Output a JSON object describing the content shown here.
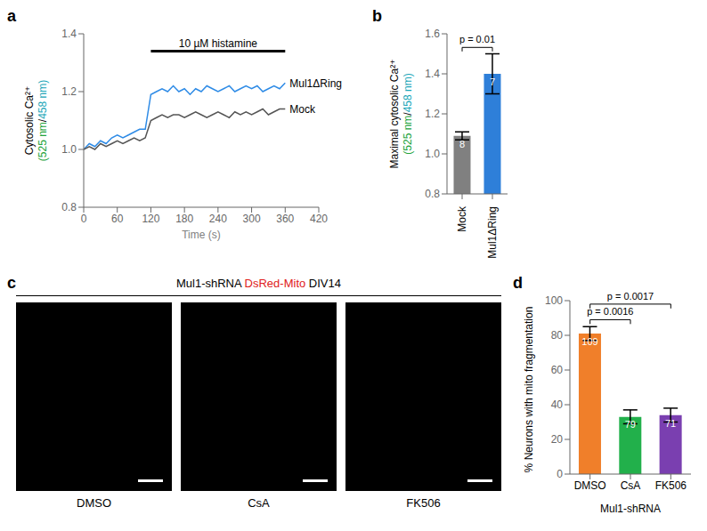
{
  "chart_data": [
    {
      "panel": "a",
      "type": "line",
      "xlabel": "Time (s)",
      "ylabel": [
        "Cytosolic Ca²⁺",
        "(525 nm/458 nm)"
      ],
      "x": [
        0,
        10,
        20,
        30,
        40,
        50,
        60,
        70,
        80,
        90,
        100,
        110,
        120,
        130,
        140,
        150,
        160,
        170,
        180,
        190,
        200,
        210,
        220,
        230,
        240,
        250,
        260,
        270,
        280,
        290,
        300,
        310,
        320,
        330,
        340,
        350,
        360
      ],
      "series": [
        {
          "name": "Mul1ΔRing",
          "color": "#2e8be6",
          "values": [
            1.0,
            1.02,
            1.01,
            1.03,
            1.02,
            1.04,
            1.05,
            1.04,
            1.05,
            1.06,
            1.07,
            1.07,
            1.19,
            1.2,
            1.21,
            1.2,
            1.22,
            1.2,
            1.21,
            1.19,
            1.21,
            1.2,
            1.22,
            1.21,
            1.2,
            1.21,
            1.22,
            1.2,
            1.21,
            1.22,
            1.21,
            1.22,
            1.2,
            1.21,
            1.22,
            1.21,
            1.23
          ]
        },
        {
          "name": "Mock",
          "color": "#555555",
          "values": [
            1.0,
            1.01,
            1.0,
            1.02,
            1.01,
            1.02,
            1.03,
            1.02,
            1.03,
            1.04,
            1.03,
            1.04,
            1.1,
            1.11,
            1.12,
            1.11,
            1.12,
            1.12,
            1.11,
            1.12,
            1.13,
            1.12,
            1.11,
            1.12,
            1.13,
            1.12,
            1.11,
            1.13,
            1.12,
            1.13,
            1.12,
            1.13,
            1.14,
            1.12,
            1.13,
            1.14,
            1.14
          ]
        }
      ],
      "xlim": [
        0,
        420
      ],
      "xticks": [
        0,
        60,
        120,
        180,
        240,
        300,
        360,
        420
      ],
      "ylim": [
        0.8,
        1.4
      ],
      "yticks": [
        0.8,
        {
          "value": 1,
          "label": "1.0"
        },
        1.2,
        1.4
      ],
      "annotations": [
        {
          "text": "10 µM histamine",
          "x": [
            120,
            360
          ]
        }
      ]
    },
    {
      "panel": "b",
      "type": "bar",
      "ylabel": [
        "Maximal cytosolic Ca²⁺",
        "(525 nm/458 nm)"
      ],
      "categories": [
        "Mock",
        "Mul1ΔRing"
      ],
      "values": [
        1.09,
        1.4
      ],
      "errors": [
        0.02,
        0.1
      ],
      "n": [
        8,
        7
      ],
      "colors": [
        "#808080",
        "#2e7fd9"
      ],
      "ylim": [
        0.8,
        1.6
      ],
      "yticks": [
        0.8,
        {
          "value": 1,
          "label": "1.0"
        },
        1.2,
        1.4,
        1.6
      ],
      "annotations": [
        {
          "text": "p = 0.01",
          "between": [
            0,
            1
          ]
        }
      ]
    },
    {
      "panel": "d",
      "type": "bar",
      "ylabel": [
        "% Neurons with mito fragmentation"
      ],
      "xlabel": "Mul1-shRNA",
      "categories": [
        "DMSO",
        "CsA",
        "FK506"
      ],
      "values": [
        81,
        33,
        34
      ],
      "errors": [
        4,
        4,
        4
      ],
      "n": [
        109,
        79,
        71
      ],
      "colors": [
        "#f07f2a",
        "#22b04b",
        "#7a3fb0"
      ],
      "ylim": [
        0,
        100
      ],
      "yticks": [
        0,
        20,
        40,
        60,
        80,
        100
      ],
      "annotations": [
        {
          "text": "p = 0.0016",
          "between": [
            0,
            1
          ]
        },
        {
          "text": "p = 0.0017",
          "between": [
            0,
            2
          ]
        }
      ]
    }
  ],
  "image_panel": {
    "panel": "c",
    "title": [
      "Mul1-shRNA",
      "DsRed-Mito",
      "DIV14"
    ],
    "captions": [
      "DMSO",
      "CsA",
      "FK506"
    ]
  }
}
